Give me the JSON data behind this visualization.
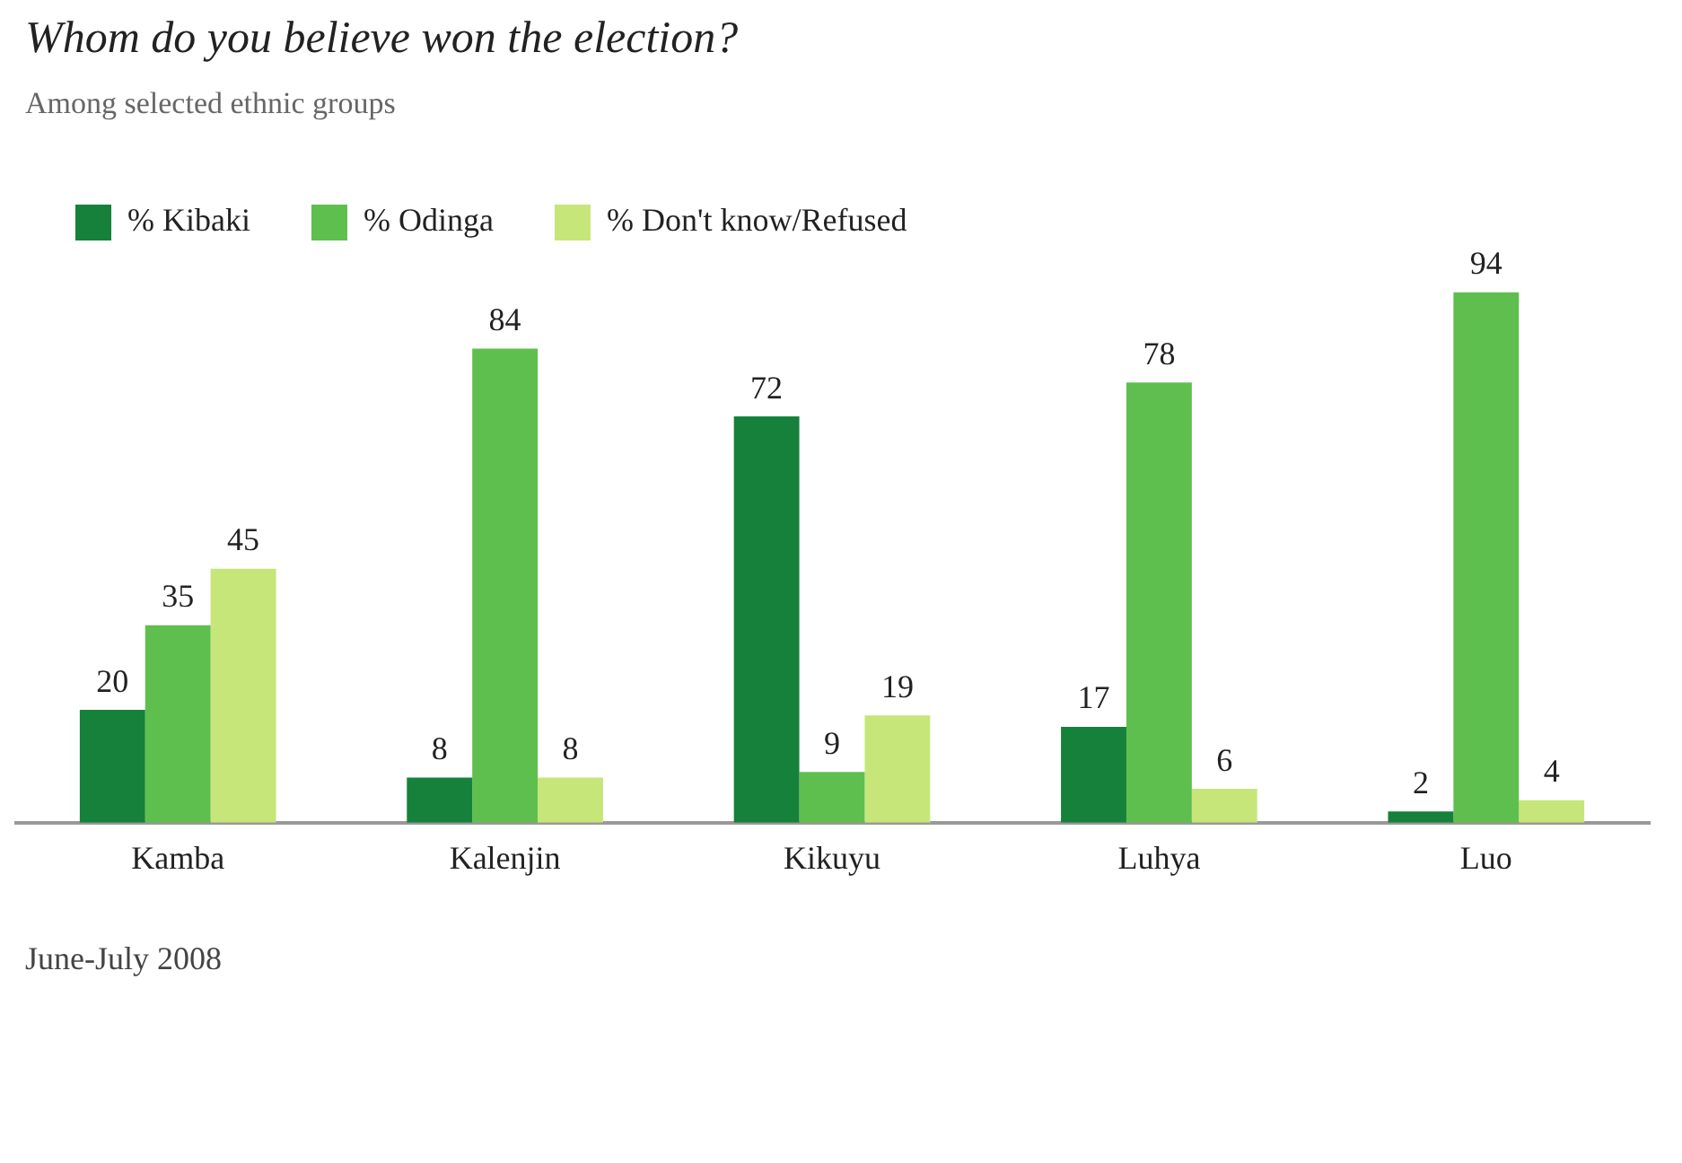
{
  "chart_data": {
    "type": "bar",
    "title": "Whom do you believe won the election?",
    "subtitle": "Among selected ethnic groups",
    "categories": [
      "Kamba",
      "Kalenjin",
      "Kikuyu",
      "Luhya",
      "Luo"
    ],
    "series": [
      {
        "name": "% Kibaki",
        "color": "#15813a",
        "values": [
          20,
          8,
          72,
          17,
          2
        ]
      },
      {
        "name": "% Odinga",
        "color": "#5fbf4e",
        "values": [
          35,
          84,
          9,
          78,
          94
        ]
      },
      {
        "name": "% Don't know/Refused",
        "color": "#c6e67a",
        "values": [
          45,
          8,
          19,
          6,
          4
        ]
      }
    ],
    "data_labels": true,
    "legend": "top left",
    "grid": false,
    "annotations": [
      "June-July 2008"
    ]
  }
}
